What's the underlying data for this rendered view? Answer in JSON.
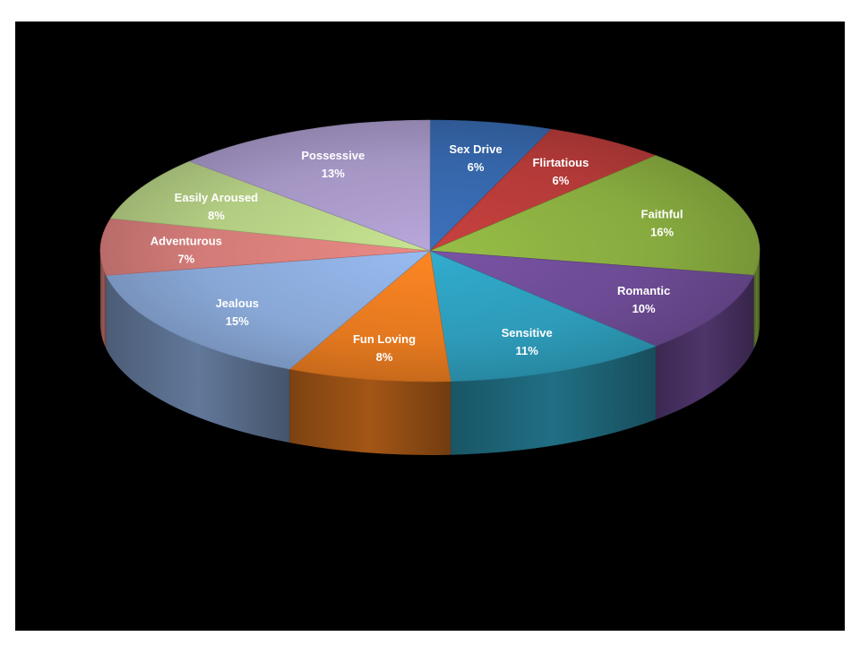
{
  "colors": {
    "slide_background": "#000000",
    "page_background": "#ffffff"
  },
  "chart_data": {
    "type": "pie",
    "style": "3d",
    "title": "",
    "legend": "none",
    "slices": [
      {
        "label": "Sex Drive",
        "percent_label": "6%",
        "value": 6,
        "color": "#3565A8"
      },
      {
        "label": "Flirtatious",
        "percent_label": "6%",
        "value": 6,
        "color": "#B33A38"
      },
      {
        "label": "Faithful",
        "percent_label": "16%",
        "value": 16,
        "color": "#87AA3F"
      },
      {
        "label": "Romantic",
        "percent_label": "10%",
        "value": 10,
        "color": "#6C4A93"
      },
      {
        "label": "Sensitive",
        "percent_label": "11%",
        "value": 11,
        "color": "#2D9AB8"
      },
      {
        "label": "Fun Loving",
        "percent_label": "8%",
        "value": 8,
        "color": "#E3781F"
      },
      {
        "label": "Jealous",
        "percent_label": "15%",
        "value": 15,
        "color": "#88A7D6"
      },
      {
        "label": "Adventurous",
        "percent_label": "7%",
        "value": 7,
        "color": "#D27B78"
      },
      {
        "label": "Easily Aroused",
        "percent_label": "8%",
        "value": 8,
        "color": "#B2CC82"
      },
      {
        "label": "Possessive",
        "percent_label": "13%",
        "value": 13,
        "color": "#A495C3"
      }
    ]
  }
}
